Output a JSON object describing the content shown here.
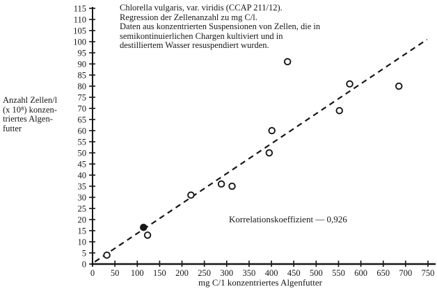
{
  "header": {
    "title_lines": "Chlorella vulgaris, var. viridis (CCAP 211/12).\nRegression der Zellenanzahl zu mg C/l.\nDaten aus konzentrierten Suspensionen von Zellen, die in\nsemikontinuierlichen Chargen kultiviert und in\ndestilliertem Wasser resuspendiert wurden."
  },
  "y_axis": {
    "label_lines": "Anzahl Zellen/l\n(x 10⁸) konzen-\ntriertes Algen-\nfutter"
  },
  "chart_data": {
    "type": "scatter",
    "title": "Chlorella vulgaris, var. viridis (CCAP 211/12). Regression der Zellenanzahl zu mg C/l.",
    "xlabel": "mg C/1 konzentriertes Algenfutter",
    "ylabel": "Anzahl Zellen/l (x 10⁸) konzentriertes Algenfutter",
    "annotation": "Korrelationskoeffizient — 0,926",
    "correlation_coefficient": "0,926",
    "xlim": [
      0,
      750
    ],
    "ylim": [
      0,
      115
    ],
    "x_ticks": [
      0,
      50,
      100,
      150,
      200,
      250,
      300,
      350,
      400,
      450,
      500,
      550,
      600,
      650,
      700,
      750
    ],
    "y_ticks": [
      0,
      5,
      10,
      15,
      20,
      25,
      30,
      35,
      40,
      45,
      50,
      55,
      60,
      65,
      70,
      75,
      80,
      85,
      90,
      95,
      100,
      105,
      110,
      115
    ],
    "grid": false,
    "ink_color": "#161616",
    "points": [
      {
        "x": 32,
        "y": 4,
        "filled": false
      },
      {
        "x": 114,
        "y": 16.5,
        "filled": true
      },
      {
        "x": 123,
        "y": 13,
        "filled": false
      },
      {
        "x": 220,
        "y": 31,
        "filled": false
      },
      {
        "x": 288,
        "y": 36,
        "filled": false
      },
      {
        "x": 312,
        "y": 35,
        "filled": false
      },
      {
        "x": 395,
        "y": 50,
        "filled": false
      },
      {
        "x": 401,
        "y": 60,
        "filled": false
      },
      {
        "x": 436,
        "y": 91,
        "filled": false
      },
      {
        "x": 552,
        "y": 69,
        "filled": false
      },
      {
        "x": 575,
        "y": 81,
        "filled": false
      },
      {
        "x": 685,
        "y": 80,
        "filled": false
      }
    ],
    "regression_line": {
      "x1": 5,
      "y1": 1,
      "x2": 748,
      "y2": 101,
      "style": "dashed"
    }
  }
}
